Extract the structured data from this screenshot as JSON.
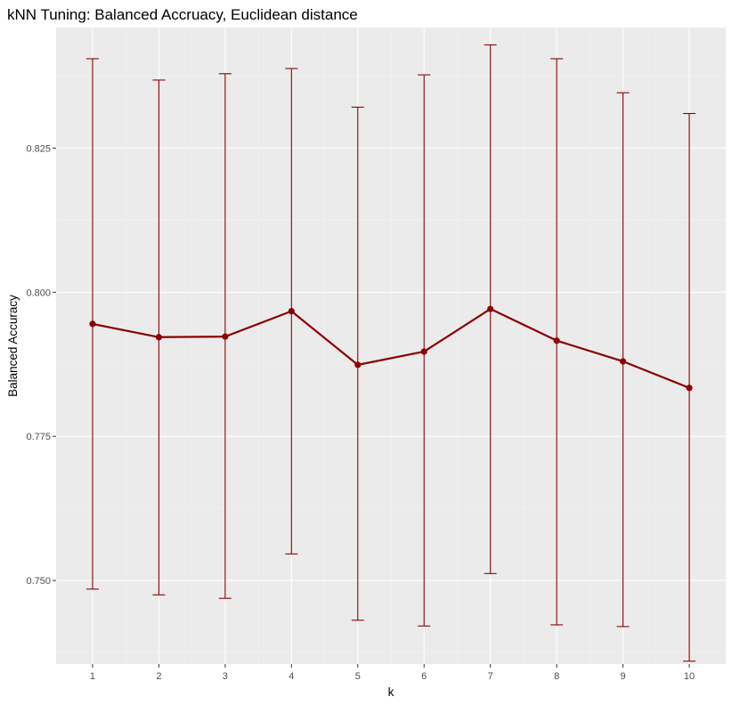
{
  "chart_data": {
    "type": "line",
    "title": "kNN Tuning: Balanced Accruacy, Euclidean distance",
    "xlabel": "k",
    "ylabel": "Balanced Accuracy",
    "x": [
      1,
      2,
      3,
      4,
      5,
      6,
      7,
      8,
      9,
      10
    ],
    "x_tick_labels": [
      "1",
      "2",
      "3",
      "4",
      "5",
      "6",
      "7",
      "8",
      "9",
      "10"
    ],
    "y_ticks": [
      0.75,
      0.775,
      0.8,
      0.825
    ],
    "y_tick_labels": [
      "0.750",
      "0.775",
      "0.800",
      "0.825"
    ],
    "xlim": [
      0.45,
      10.55
    ],
    "ylim": [
      0.7355,
      0.8459
    ],
    "series": [
      {
        "values": [
          0.7945,
          0.7922,
          0.7923,
          0.7967,
          0.7874,
          0.7897,
          0.7971,
          0.7916,
          0.788,
          0.7834
        ],
        "error_low": [
          0.7485,
          0.7475,
          0.7469,
          0.7546,
          0.7431,
          0.7421,
          0.7512,
          0.7423,
          0.742,
          0.736
        ],
        "error_high": [
          0.8405,
          0.8368,
          0.8379,
          0.8388,
          0.8321,
          0.8377,
          0.8429,
          0.8405,
          0.8346,
          0.831
        ]
      }
    ],
    "grid": true,
    "legend": "none",
    "colors": {
      "panel_background": "#ebebeb",
      "grid_major": "#ffffff",
      "grid_minor": "#f5f5f5",
      "line": "#8b0000",
      "tick_text": "#4d4d4d",
      "text": "#000000"
    }
  }
}
